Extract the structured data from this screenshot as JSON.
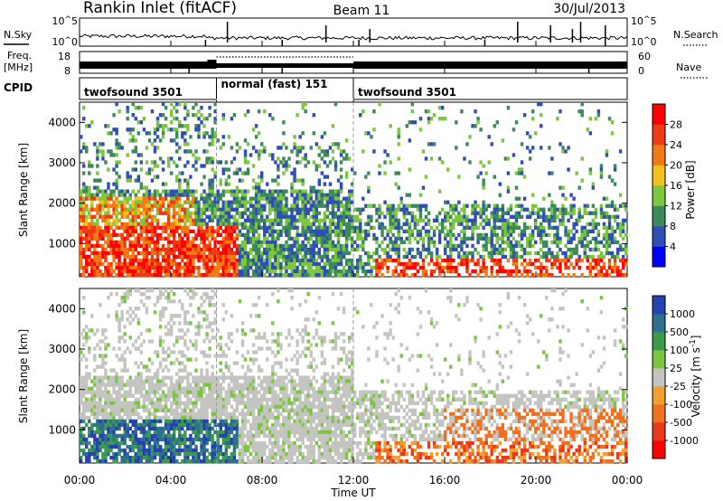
{
  "header": {
    "station": "Rankin Inlet (fitACF)",
    "beam": "Beam 11",
    "date": "30/Jul/2013"
  },
  "labels": {
    "nsky": "N.Sky",
    "nsearch": "N.Search",
    "freq_line1": "Freq.",
    "freq_line2": "[MHz]",
    "nave": "Nave",
    "cpid": "CPID",
    "nsky_ticks": [
      "10^5",
      "10^0"
    ],
    "nsearch_ticks": [
      "10^5",
      "10^0"
    ],
    "freq_ticks": [
      "18",
      "8"
    ],
    "nave_ticks": [
      "60",
      "0"
    ]
  },
  "cpid_segments": [
    {
      "name": "twofsound 3501",
      "start_h": 0,
      "end_h": 6
    },
    {
      "name": "normal (fast) 151",
      "start_h": 6,
      "end_h": 12
    },
    {
      "name": "twofsound 3501",
      "start_h": 12,
      "end_h": 24
    }
  ],
  "chart_data": [
    {
      "type": "heatmap",
      "quantity": "Power",
      "xlabel": "",
      "ylabel": "Slant Range [km]",
      "ylim": [
        180,
        4500
      ],
      "y_ticks": [
        "1000",
        "2000",
        "3000",
        "4000"
      ],
      "colorbar_label": "Power [dB]",
      "colorbar_ticks": [
        "4",
        "8",
        "12",
        "16",
        "20",
        "24",
        "28"
      ],
      "colorbar_colors": [
        "#0000ff",
        "#2f4fb7",
        "#3c8a5a",
        "#7dc63f",
        "#f2c11b",
        "#f07b12",
        "#ee3b12",
        "#ff0000"
      ]
    },
    {
      "type": "heatmap",
      "quantity": "Velocity",
      "xlabel": "Time UT",
      "ylabel": "Slant Range [km]",
      "ylim": [
        180,
        4500
      ],
      "y_ticks": [
        "1000",
        "2000",
        "3000",
        "4000"
      ],
      "x_ticks": [
        "00:00",
        "04:00",
        "08:00",
        "12:00",
        "16:00",
        "20:00",
        "00:00"
      ],
      "colorbar_label": "Velocity [m s^-1]",
      "colorbar_ticks": [
        "1000",
        "500",
        "100",
        "25",
        "-25",
        "-100",
        "-500",
        "-1000"
      ],
      "colorbar_colors": [
        "#2442b0",
        "#2e6e8e",
        "#3d9a4a",
        "#7cc442",
        "#c4c4c0",
        "#f0a030",
        "#f07020",
        "#e83a18",
        "#ff0000"
      ]
    }
  ]
}
